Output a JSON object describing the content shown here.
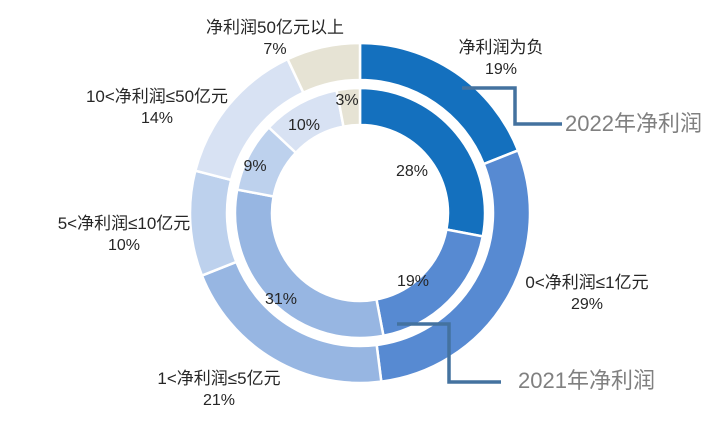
{
  "chart_data": {
    "type": "pie",
    "subtype": "double-ring-donut",
    "title": "",
    "categories": [
      "净利润为负",
      "0<净利润≤1亿元",
      "1<净利润≤5亿元",
      "5<净利润≤10亿元",
      "10<净利润≤50亿元",
      "净利润50亿元以上"
    ],
    "series": [
      {
        "name": "2022年净利润",
        "ring": "outer",
        "values": [
          19,
          29,
          21,
          10,
          14,
          7
        ]
      },
      {
        "name": "2021年净利润",
        "ring": "inner",
        "values": [
          28,
          19,
          31,
          9,
          10,
          3
        ]
      }
    ],
    "unit": "%",
    "start_angle_deg": 0,
    "direction": "clockwise",
    "colors": [
      "#1470BE",
      "#578AD2",
      "#97B6E2",
      "#BDD1ED",
      "#D8E2F3",
      "#E6E3D4"
    ],
    "segment_border_color": "#FFFFFF",
    "background": "#FFFFFF",
    "legend_position": "none"
  },
  "labels": {
    "category_callouts": [
      {
        "name": "净利润为负",
        "pct": "19%"
      },
      {
        "name": "0<净利润≤1亿元",
        "pct": "29%"
      },
      {
        "name": "1<净利润≤5亿元",
        "pct": "21%"
      },
      {
        "name": "5<净利润≤10亿元",
        "pct": "10%"
      },
      {
        "name": "10<净利润≤50亿元",
        "pct": "14%"
      },
      {
        "name": "净利润50亿元以上",
        "pct": "7%"
      }
    ],
    "inner_ring_labels": [
      "28%",
      "19%",
      "31%",
      "9%",
      "10%",
      "3%"
    ],
    "series_callouts": [
      {
        "text": "2022年净利润"
      },
      {
        "text": "2021年净利润"
      }
    ],
    "colors": {
      "data_label": "#262626",
      "series_label": "#808080",
      "connector": "#44729F"
    }
  }
}
